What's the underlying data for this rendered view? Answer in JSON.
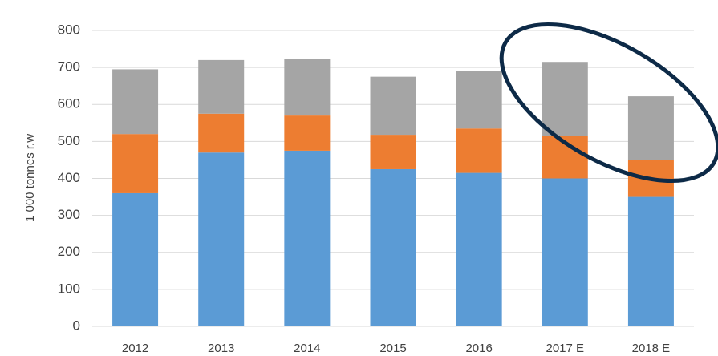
{
  "chart_data": {
    "type": "stacked_bar",
    "y_label": "1 000 tonnes r.w",
    "categories": [
      "2012",
      "2013",
      "2014",
      "2015",
      "2016",
      "2017 E",
      "2018 E"
    ],
    "series": [
      {
        "color": "#5b9bd5",
        "values": [
          360,
          470,
          475,
          425,
          415,
          400,
          350
        ]
      },
      {
        "color": "#ed7d31",
        "values": [
          160,
          105,
          95,
          93,
          120,
          115,
          100
        ]
      },
      {
        "color": "#a5a5a5",
        "values": [
          175,
          145,
          152,
          157,
          155,
          200,
          172
        ]
      }
    ],
    "ylim": [
      0,
      800
    ],
    "yticks": [
      0,
      100,
      200,
      300,
      400,
      500,
      600,
      700,
      800
    ],
    "grid": true
  }
}
